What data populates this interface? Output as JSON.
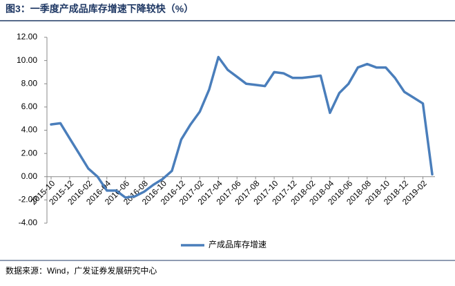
{
  "chart_data": {
    "type": "line",
    "title": "图3：一季度产成品库存增速下降较快（%）",
    "source": "数据来源：Wind，广发证券发展研究中心",
    "categories": [
      "2015-10",
      null,
      "2015-12",
      null,
      "2016-02",
      null,
      "2016-04",
      null,
      "2016-06",
      null,
      "2016-08",
      null,
      "2016-10",
      null,
      "2016-12",
      null,
      "2017-02",
      null,
      "2017-04",
      null,
      "2017-06",
      null,
      "2017-08",
      null,
      "2017-10",
      null,
      "2017-12",
      null,
      "2018-02",
      null,
      "2018-04",
      null,
      "2018-06",
      null,
      "2018-08",
      null,
      "2018-10",
      null,
      "2018-12",
      null,
      "2019-02",
      null
    ],
    "series": [
      {
        "name": "产成品库存增速",
        "color": "#4a7ebb",
        "values": [
          4.5,
          4.6,
          3.3,
          2.0,
          0.7,
          0.0,
          -1.2,
          -1.2,
          -1.8,
          -1.7,
          -1.3,
          -0.7,
          -0.2,
          0.5,
          3.2,
          4.5,
          5.6,
          7.5,
          10.3,
          9.2,
          8.6,
          8.0,
          7.9,
          7.8,
          9.0,
          8.9,
          8.5,
          8.5,
          8.6,
          8.7,
          5.5,
          7.2,
          8.0,
          9.4,
          9.7,
          9.4,
          9.4,
          8.5,
          7.3,
          6.8,
          6.3,
          0.2
        ]
      }
    ],
    "ylim": [
      -4,
      12
    ],
    "yticks": [
      {
        "value": -4,
        "label": "-4.00"
      },
      {
        "value": -2,
        "label": "-2.00"
      },
      {
        "value": 0,
        "label": "0.00"
      },
      {
        "value": 2,
        "label": "2.00"
      },
      {
        "value": 4,
        "label": "4.00"
      },
      {
        "value": 6,
        "label": "6.00"
      },
      {
        "value": 8,
        "label": "8.00"
      },
      {
        "value": 10,
        "label": "10.00"
      },
      {
        "value": 12,
        "label": "12.00"
      }
    ],
    "legend": "bottom"
  }
}
